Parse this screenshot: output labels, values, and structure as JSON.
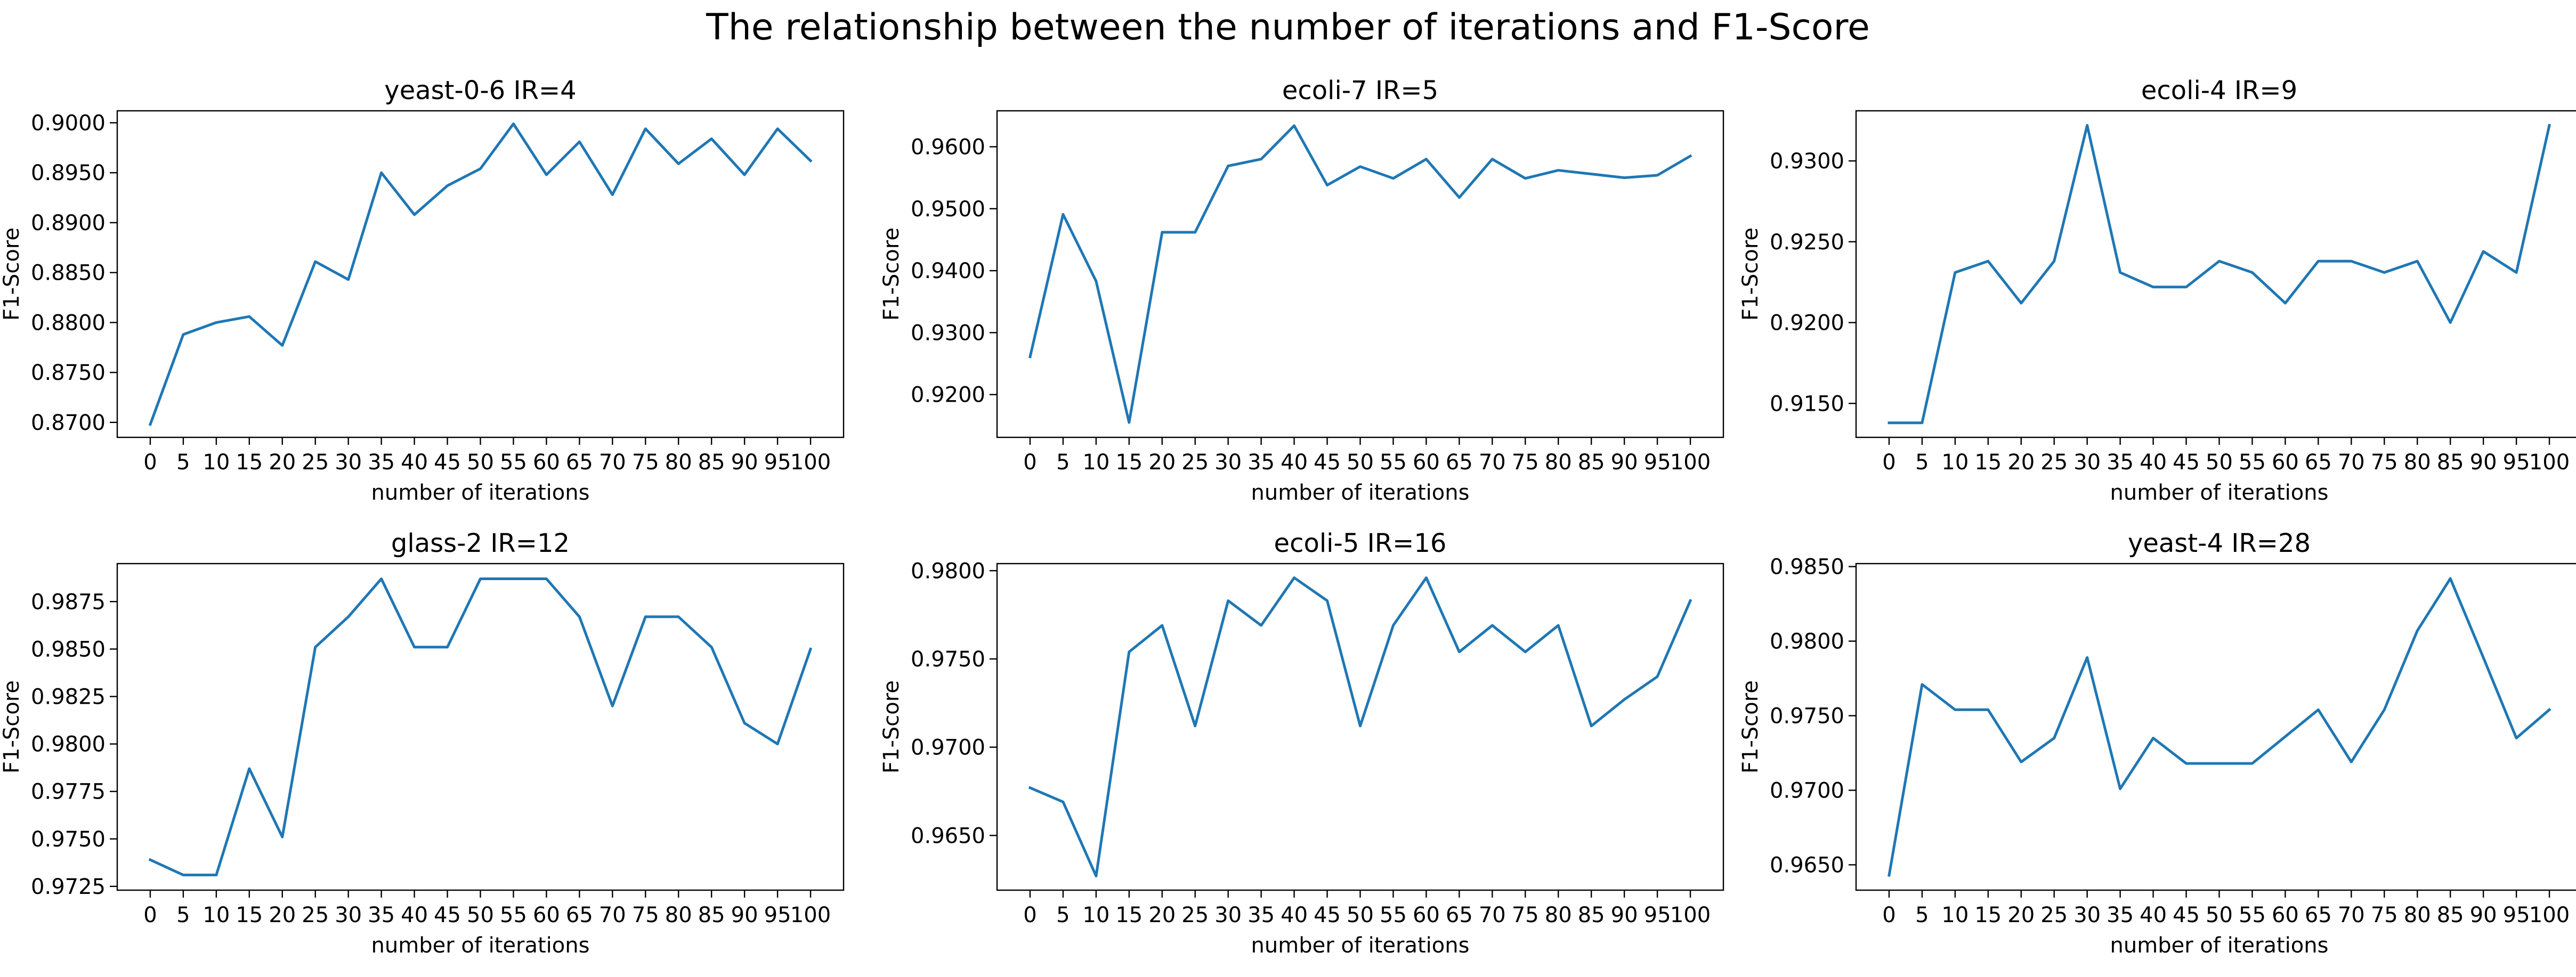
{
  "figure": {
    "title": "The relationship between the number of iterations and F1-Score"
  },
  "line_color": "#1f77b4",
  "chart_data": [
    {
      "type": "line",
      "title": "yeast-0-6 IR=4",
      "xlabel": "number of iterations",
      "ylabel": "F1-Score",
      "x": [
        0,
        5,
        10,
        15,
        20,
        25,
        30,
        35,
        40,
        45,
        50,
        55,
        60,
        65,
        70,
        75,
        80,
        85,
        90,
        95,
        100
      ],
      "y": [
        0.8698,
        0.8788,
        0.88,
        0.8806,
        0.8777,
        0.8861,
        0.8843,
        0.895,
        0.8908,
        0.8937,
        0.8954,
        0.8999,
        0.8948,
        0.8981,
        0.8928,
        0.8994,
        0.8959,
        0.8984,
        0.8948,
        0.8994,
        0.8962
      ],
      "ylim": [
        0.8685,
        0.9012
      ],
      "yticks": [
        0.87,
        0.875,
        0.88,
        0.885,
        0.89,
        0.895,
        0.9
      ],
      "ytick_labels": [
        "0.8700",
        "0.8750",
        "0.8800",
        "0.8850",
        "0.8900",
        "0.8950",
        "0.9000"
      ],
      "grid": false
    },
    {
      "type": "line",
      "title": "ecoli-7 IR=5",
      "xlabel": "number of iterations",
      "ylabel": "F1-Score",
      "x": [
        0,
        5,
        10,
        15,
        20,
        25,
        30,
        35,
        40,
        45,
        50,
        55,
        60,
        65,
        70,
        75,
        80,
        85,
        90,
        95,
        100
      ],
      "y": [
        0.9261,
        0.9491,
        0.9383,
        0.9155,
        0.9462,
        0.9462,
        0.9569,
        0.958,
        0.9634,
        0.9538,
        0.9568,
        0.9549,
        0.958,
        0.9518,
        0.958,
        0.9549,
        0.9562,
        0.9556,
        0.955,
        0.9554,
        0.9585
      ],
      "ylim": [
        0.9131,
        0.9658
      ],
      "yticks": [
        0.92,
        0.93,
        0.94,
        0.95,
        0.96
      ],
      "ytick_labels": [
        "0.9200",
        "0.9300",
        "0.9400",
        "0.9500",
        "0.9600"
      ],
      "grid": false
    },
    {
      "type": "line",
      "title": "ecoli-4 IR=9",
      "xlabel": "number of iterations",
      "ylabel": "F1-Score",
      "x": [
        0,
        5,
        10,
        15,
        20,
        25,
        30,
        35,
        40,
        45,
        50,
        55,
        60,
        65,
        70,
        75,
        80,
        85,
        90,
        95,
        100
      ],
      "y": [
        0.9138,
        0.9138,
        0.9231,
        0.9238,
        0.9212,
        0.9238,
        0.9322,
        0.9231,
        0.9222,
        0.9222,
        0.9238,
        0.9231,
        0.9212,
        0.9238,
        0.9238,
        0.9231,
        0.9238,
        0.92,
        0.9244,
        0.9231,
        0.9322
      ],
      "ylim": [
        0.9129,
        0.9331
      ],
      "yticks": [
        0.915,
        0.92,
        0.925,
        0.93
      ],
      "ytick_labels": [
        "0.9150",
        "0.9200",
        "0.9250",
        "0.9300"
      ],
      "grid": false
    },
    {
      "type": "line",
      "title": "glass-2 IR=12",
      "xlabel": "number of iterations",
      "ylabel": "F1-Score",
      "x": [
        0,
        5,
        10,
        15,
        20,
        25,
        30,
        35,
        40,
        45,
        50,
        55,
        60,
        65,
        70,
        75,
        80,
        85,
        90,
        95,
        100
      ],
      "y": [
        0.9739,
        0.9731,
        0.9731,
        0.9787,
        0.9751,
        0.9851,
        0.9867,
        0.9887,
        0.9851,
        0.9851,
        0.9887,
        0.9887,
        0.9887,
        0.9867,
        0.982,
        0.9867,
        0.9867,
        0.9851,
        0.9811,
        0.98,
        0.985
      ],
      "ylim": [
        0.9723,
        0.9895
      ],
      "yticks": [
        0.9725,
        0.975,
        0.9775,
        0.98,
        0.9825,
        0.985,
        0.9875
      ],
      "ytick_labels": [
        "0.9725",
        "0.9750",
        "0.9775",
        "0.9800",
        "0.9825",
        "0.9850",
        "0.9875"
      ],
      "grid": false
    },
    {
      "type": "line",
      "title": "ecoli-5 IR=16",
      "xlabel": "number of iterations",
      "ylabel": "F1-Score",
      "x": [
        0,
        5,
        10,
        15,
        20,
        25,
        30,
        35,
        40,
        45,
        50,
        55,
        60,
        65,
        70,
        75,
        80,
        85,
        90,
        95,
        100
      ],
      "y": [
        0.9677,
        0.9669,
        0.9627,
        0.9754,
        0.9769,
        0.9712,
        0.9783,
        0.9769,
        0.9796,
        0.9783,
        0.9712,
        0.9769,
        0.9796,
        0.9754,
        0.9769,
        0.9754,
        0.9769,
        0.9712,
        0.9727,
        0.974,
        0.9783
      ],
      "ylim": [
        0.9619,
        0.9804
      ],
      "yticks": [
        0.965,
        0.97,
        0.975,
        0.98
      ],
      "ytick_labels": [
        "0.9650",
        "0.9700",
        "0.9750",
        "0.9800"
      ],
      "grid": false
    },
    {
      "type": "line",
      "title": "yeast-4 IR=28",
      "xlabel": "number of iterations",
      "ylabel": "F1-Score",
      "x": [
        0,
        5,
        10,
        15,
        20,
        25,
        30,
        35,
        40,
        45,
        50,
        55,
        60,
        65,
        70,
        75,
        80,
        85,
        90,
        95,
        100
      ],
      "y": [
        0.9643,
        0.9771,
        0.9754,
        0.9754,
        0.9719,
        0.9735,
        0.9789,
        0.9701,
        0.9735,
        0.9718,
        0.9718,
        0.9718,
        0.9736,
        0.9754,
        0.9719,
        0.9754,
        0.9807,
        0.9842,
        0.9789,
        0.9735,
        0.9754
      ],
      "ylim": [
        0.9633,
        0.9852
      ],
      "yticks": [
        0.965,
        0.97,
        0.975,
        0.98,
        0.985
      ],
      "ytick_labels": [
        "0.9650",
        "0.9700",
        "0.9750",
        "0.9800",
        "0.9850"
      ],
      "grid": false
    }
  ]
}
